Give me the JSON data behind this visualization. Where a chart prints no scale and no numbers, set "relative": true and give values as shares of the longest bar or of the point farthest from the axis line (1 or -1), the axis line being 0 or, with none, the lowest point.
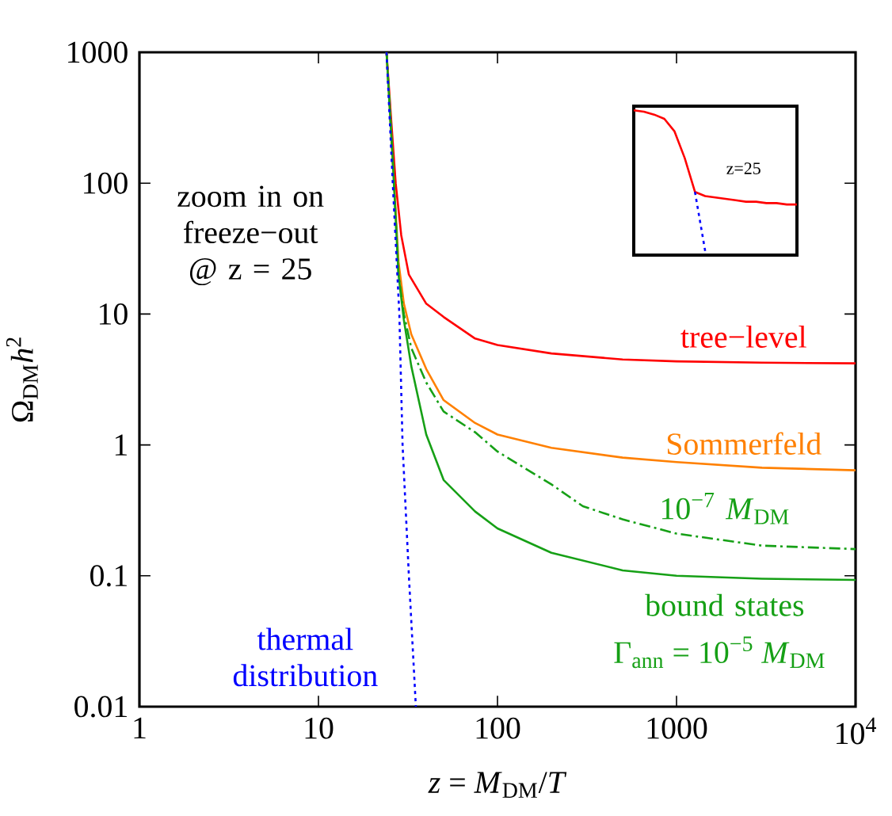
{
  "chart_data": [
    {
      "type": "line",
      "xlabel": "*z* = *M*$_{DM}$/*T*",
      "ylabel": "Ω$_{DM}$*h*$^{2}$",
      "log": "xy",
      "xlim": [
        1,
        10000
      ],
      "ylim": [
        0.01,
        1000
      ],
      "xticks": [
        1,
        10,
        100,
        1000,
        {
          "value": 10000,
          "label": "10$^{4}$"
        }
      ],
      "yticks": [
        0.01,
        0.1,
        1,
        10,
        100,
        1000
      ],
      "annotations": [
        "zoom in on freeze−out @ z = 25",
        "Γ$_{ann}$ = 10$^{−5}$ *M*$_{DM}$"
      ],
      "series": [
        {
          "name": "tree−level",
          "color": "#ff0000",
          "line_style": "solid",
          "x": [
            24,
            25.5,
            27,
            29,
            32,
            40,
            50,
            75,
            100,
            200,
            500,
            1000,
            3000,
            10000
          ],
          "values": [
            1000,
            300,
            100,
            40,
            20,
            12,
            9.5,
            6.5,
            5.8,
            5,
            4.5,
            4.35,
            4.25,
            4.2
          ]
        },
        {
          "name": "Sommerfeld",
          "color": "#ff8000",
          "line_style": "solid",
          "x": [
            24,
            26,
            28,
            30,
            33,
            40,
            50,
            75,
            100,
            200,
            500,
            1000,
            3000,
            10000
          ],
          "values": [
            1000,
            150,
            25,
            12,
            7,
            3.8,
            2.2,
            1.47,
            1.2,
            0.95,
            0.8,
            0.74,
            0.67,
            0.64
          ]
        },
        {
          "name": "10$^{−7}$ *M*$_{DM}$",
          "color": "#16a016",
          "line_style": "dashed",
          "x": [
            24,
            26,
            28,
            30,
            33,
            40,
            50,
            75,
            100,
            200,
            300,
            500,
            1000,
            3000,
            10000
          ],
          "values": [
            1000,
            150,
            20,
            10,
            5.5,
            3,
            1.8,
            1.25,
            0.89,
            0.5,
            0.34,
            0.27,
            0.21,
            0.17,
            0.16
          ]
        },
        {
          "name": "bound states",
          "color": "#16a016",
          "line_style": "solid",
          "x": [
            24,
            26,
            28,
            30,
            33,
            40,
            50,
            75,
            100,
            200,
            500,
            1000,
            3000,
            10000
          ],
          "values": [
            1000,
            150,
            20,
            9,
            4,
            1.2,
            0.54,
            0.31,
            0.23,
            0.15,
            0.11,
            0.1,
            0.095,
            0.093
          ]
        },
        {
          "name": "thermal distribution",
          "color": "#0000ff",
          "line_style": "dotted",
          "x": [
            24,
            26,
            28.3,
            29.5,
            32,
            35
          ],
          "values": [
            1000,
            100,
            10,
            1,
            0.1,
            0.01
          ]
        }
      ]
    },
    {
      "type": "line",
      "relative": true,
      "categories": [
        null,
        null,
        null,
        null,
        null,
        null,
        null,
        null,
        null,
        null,
        null,
        null,
        null,
        null,
        null,
        null,
        null
      ],
      "annotations": [
        "z=25"
      ],
      "series": [
        {
          "color": "#ff0000",
          "line_style": "solid",
          "values": [
            1,
            0.99,
            0.97,
            0.94,
            0.85,
            0.66,
            0.42,
            0.39,
            0.38,
            0.37,
            0.36,
            0.35,
            0.35,
            0.34,
            0.34,
            0.33,
            0.33
          ]
        },
        {
          "color": "#0000ff",
          "line_style": "dotted",
          "values": [
            null,
            null,
            null,
            null,
            null,
            null,
            0.42,
            0,
            null,
            null,
            null,
            null,
            null,
            null,
            null,
            null,
            null
          ]
        }
      ]
    }
  ]
}
